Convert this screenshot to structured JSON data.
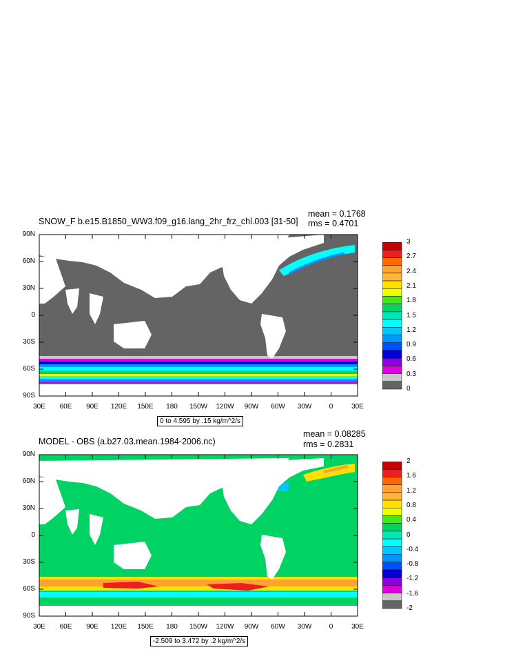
{
  "panels": [
    {
      "title": "SNOW_F b.e15.B1850_WW3.f09_g16.lang_2hr_frz_chl.003 [31-50]",
      "mean": "mean = 0.1768",
      "rms": "rms = 0.4701",
      "range": "0 to 4.595 by .15 kg/m^2/s",
      "lat_ticks": [
        "90N",
        "60N",
        "30N",
        "0",
        "30S",
        "60S",
        "90S"
      ],
      "lon_ticks": [
        "30E",
        "60E",
        "90E",
        "120E",
        "150E",
        "180",
        "150W",
        "120W",
        "90W",
        "60W",
        "30W",
        "0",
        "30E"
      ],
      "colorbar_labels": [
        "3",
        "2.7",
        "2.4",
        "2.1",
        "1.8",
        "1.5",
        "1.2",
        "0.9",
        "0.6",
        "0.3",
        "0"
      ],
      "colorbar_colors": [
        "#c80000",
        "#ee1e1e",
        "#ff6a00",
        "#ffa232",
        "#ffb43c",
        "#ffe100",
        "#f0ff00",
        "#46e61e",
        "#00d264",
        "#00e6b4",
        "#00ffff",
        "#00c8ff",
        "#0096ff",
        "#0050ff",
        "#0000d2",
        "#8c00dc",
        "#dc00dc",
        "#c8c8c8",
        "#646464"
      ]
    },
    {
      "title": "MODEL - OBS (a.b27.03.mean.1984-2006.nc)",
      "mean": "mean = 0.08285",
      "rms": "rms = 0.2831",
      "range": "-2.509 to 3.472 by .2 kg/m^2/s",
      "lat_ticks": [
        "90N",
        "60N",
        "30N",
        "0",
        "30S",
        "60S",
        "90S"
      ],
      "lon_ticks": [
        "30E",
        "60E",
        "90E",
        "120E",
        "150E",
        "180",
        "150W",
        "120W",
        "90W",
        "60W",
        "30W",
        "0",
        "30E"
      ],
      "colorbar_labels": [
        "2",
        "1.6",
        "1.2",
        "0.8",
        "0.4",
        "0",
        "-0.4",
        "-0.8",
        "-1.2",
        "-1.6",
        "-2"
      ],
      "colorbar_colors": [
        "#c80000",
        "#ee1e1e",
        "#ff6a00",
        "#ffa232",
        "#ffb43c",
        "#ffe100",
        "#f0ff00",
        "#46e61e",
        "#00d264",
        "#00e6b4",
        "#00ffff",
        "#00c8ff",
        "#0096ff",
        "#0050ff",
        "#0000d2",
        "#8c00dc",
        "#dc00dc",
        "#c8c8c8",
        "#646464"
      ]
    }
  ]
}
